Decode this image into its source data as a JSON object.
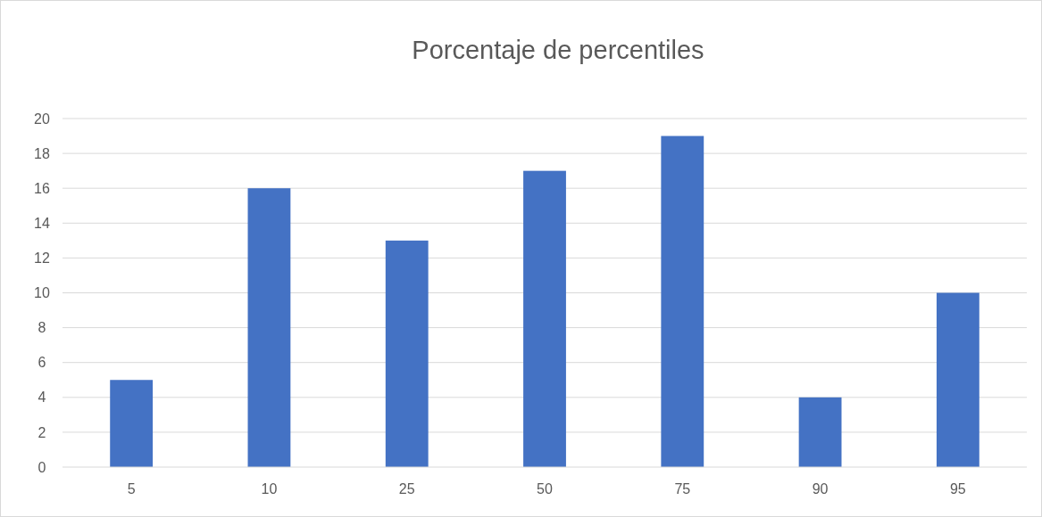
{
  "chart_data": {
    "type": "bar",
    "title": "Porcentaje de percentiles",
    "categories": [
      "5",
      "10",
      "25",
      "50",
      "75",
      "90",
      "95"
    ],
    "values": [
      5,
      16,
      13,
      17,
      19,
      4,
      10
    ],
    "color": "#4472c4",
    "ylim": [
      0,
      20
    ],
    "yticks": [
      0,
      2,
      4,
      6,
      8,
      10,
      12,
      14,
      16,
      18,
      20
    ],
    "grid": "y"
  }
}
